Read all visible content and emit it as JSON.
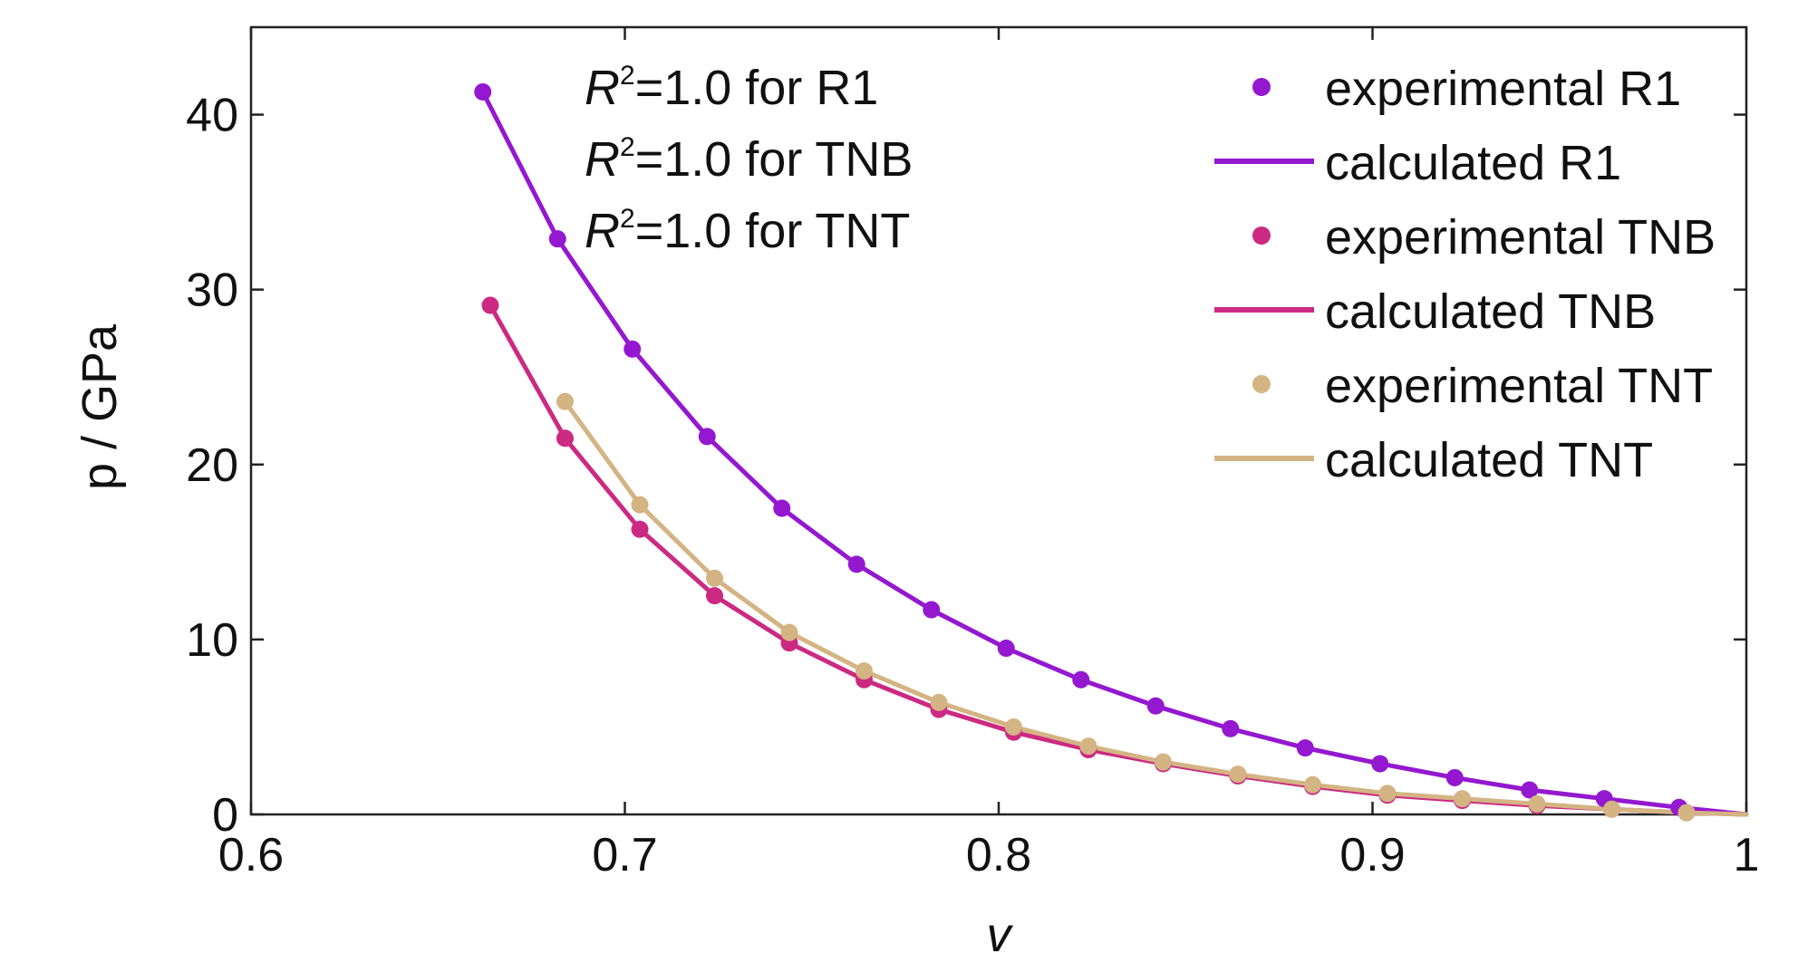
{
  "chart_data": {
    "type": "line",
    "xlabel": "v",
    "ylabel": "p / GPa",
    "xlim": [
      0.6,
      1.0
    ],
    "ylim": [
      0,
      45
    ],
    "x_ticks": [
      "0.6",
      "0.7",
      "0.8",
      "0.9",
      "1"
    ],
    "y_ticks": [
      "0",
      "10",
      "20",
      "30",
      "40"
    ],
    "grid": false,
    "legend_position": "top-right",
    "annotations": [
      {
        "sym": "R",
        "sup": "2",
        "text": "=1.0 for R1"
      },
      {
        "sym": "R",
        "sup": "2",
        "text": "=1.0 for TNB"
      },
      {
        "sym": "R",
        "sup": "2",
        "text": "=1.0 for TNT"
      }
    ],
    "series": [
      {
        "name": "experimental R1",
        "kind": "points",
        "color": "#9418d0",
        "x": [
          0.662,
          0.682,
          0.702,
          0.722,
          0.742,
          0.762,
          0.782,
          0.802,
          0.822,
          0.842,
          0.862,
          0.882,
          0.902,
          0.922,
          0.942,
          0.962,
          0.982
        ],
        "y": [
          41.3,
          32.9,
          26.6,
          21.6,
          17.5,
          14.3,
          11.7,
          9.5,
          7.7,
          6.2,
          4.9,
          3.8,
          2.9,
          2.1,
          1.4,
          0.9,
          0.4
        ]
      },
      {
        "name": "calculated R1",
        "kind": "line",
        "color": "#9418d0",
        "x": [
          0.662,
          0.682,
          0.702,
          0.722,
          0.742,
          0.762,
          0.782,
          0.802,
          0.822,
          0.842,
          0.862,
          0.882,
          0.902,
          0.922,
          0.942,
          0.962,
          0.982,
          1.0
        ],
        "y": [
          41.3,
          32.9,
          26.6,
          21.6,
          17.5,
          14.3,
          11.7,
          9.5,
          7.7,
          6.2,
          4.9,
          3.8,
          2.9,
          2.1,
          1.4,
          0.9,
          0.4,
          0.0
        ]
      },
      {
        "name": "experimental TNB",
        "kind": "points",
        "color": "#cc2a82",
        "x": [
          0.664,
          0.684,
          0.704,
          0.724,
          0.744,
          0.764,
          0.784,
          0.804,
          0.824,
          0.844,
          0.864,
          0.884,
          0.904,
          0.924,
          0.944,
          0.964,
          0.984
        ],
        "y": [
          29.1,
          21.5,
          16.3,
          12.5,
          9.8,
          7.7,
          6.0,
          4.7,
          3.7,
          2.9,
          2.2,
          1.6,
          1.1,
          0.8,
          0.5,
          0.3,
          0.1
        ]
      },
      {
        "name": "calculated TNB",
        "kind": "line",
        "color": "#cc2a82",
        "x": [
          0.664,
          0.684,
          0.704,
          0.724,
          0.744,
          0.764,
          0.784,
          0.804,
          0.824,
          0.844,
          0.864,
          0.884,
          0.904,
          0.924,
          0.944,
          0.964,
          0.984,
          1.0
        ],
        "y": [
          29.1,
          21.5,
          16.3,
          12.5,
          9.8,
          7.7,
          6.0,
          4.7,
          3.7,
          2.9,
          2.2,
          1.6,
          1.1,
          0.8,
          0.5,
          0.3,
          0.1,
          0.0
        ]
      },
      {
        "name": "experimental TNT",
        "kind": "points",
        "color": "#d4b483",
        "x": [
          0.684,
          0.704,
          0.724,
          0.744,
          0.764,
          0.784,
          0.804,
          0.824,
          0.844,
          0.864,
          0.884,
          0.904,
          0.924,
          0.944,
          0.964,
          0.984
        ],
        "y": [
          23.6,
          17.7,
          13.5,
          10.4,
          8.2,
          6.4,
          5.0,
          3.9,
          3.0,
          2.3,
          1.7,
          1.2,
          0.9,
          0.6,
          0.3,
          0.1
        ]
      },
      {
        "name": "calculated TNT",
        "kind": "line",
        "color": "#d4b483",
        "x": [
          0.684,
          0.704,
          0.724,
          0.744,
          0.764,
          0.784,
          0.804,
          0.824,
          0.844,
          0.864,
          0.884,
          0.904,
          0.924,
          0.944,
          0.964,
          0.984,
          1.0
        ],
        "y": [
          23.6,
          17.7,
          13.5,
          10.4,
          8.2,
          6.4,
          5.0,
          3.9,
          3.0,
          2.3,
          1.7,
          1.2,
          0.9,
          0.6,
          0.3,
          0.1,
          0.0
        ]
      }
    ]
  }
}
